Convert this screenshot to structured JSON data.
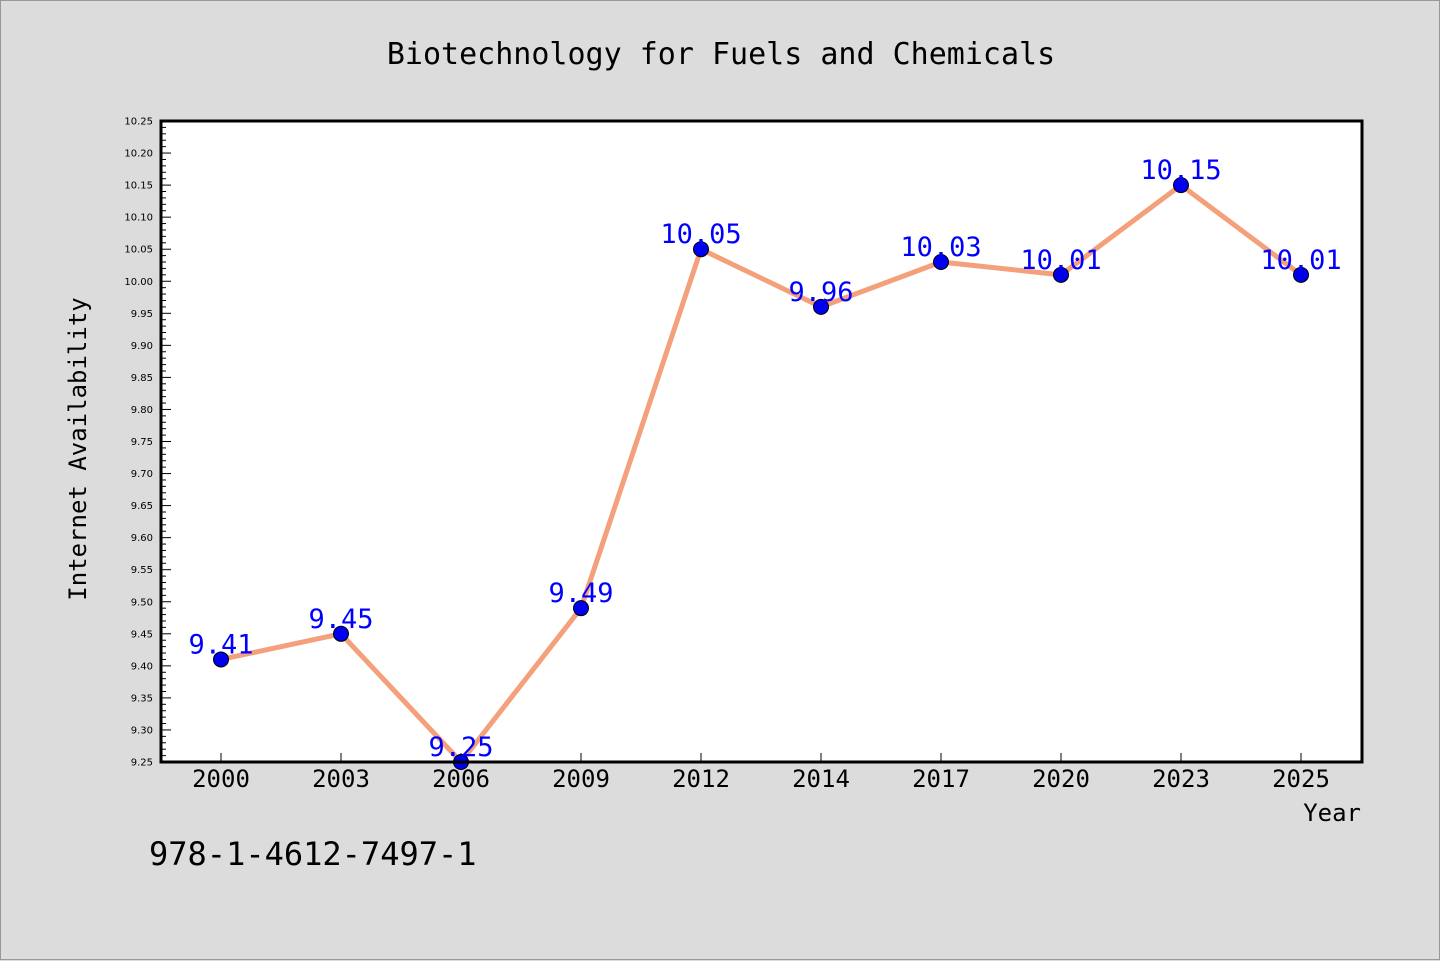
{
  "chart_data": {
    "type": "line",
    "title": "Biotechnology for Fuels and Chemicals",
    "xlabel": "Year",
    "ylabel": "Internet Availability",
    "categories": [
      "2000",
      "2003",
      "2006",
      "2009",
      "2012",
      "2014",
      "2017",
      "2020",
      "2023",
      "2025"
    ],
    "series": [
      {
        "values": [
          9.41,
          9.45,
          9.25,
          9.49,
          10.05,
          9.96,
          10.03,
          10.01,
          10.15,
          10.01
        ]
      }
    ],
    "data_labels": [
      "9.41",
      "9.45",
      "9.25",
      "9.49",
      "10.05",
      "9.96",
      "10.03",
      "10.01",
      "10.15",
      "10.01"
    ],
    "ylim": [
      9.25,
      10.25
    ],
    "yticks": [
      "9.25",
      "9.30",
      "9.35",
      "9.40",
      "9.45",
      "9.50",
      "9.55",
      "9.60",
      "9.65",
      "9.70",
      "9.75",
      "9.80",
      "9.85",
      "9.90",
      "9.95",
      "10.00",
      "10.05",
      "10.10",
      "10.15",
      "10.20",
      "10.25"
    ],
    "grid": false,
    "line_color": "#f4a07a",
    "marker_color": "#0000ee",
    "label_color": "#0000ff"
  },
  "footer": {
    "isbn": "978-1-4612-7497-1"
  }
}
